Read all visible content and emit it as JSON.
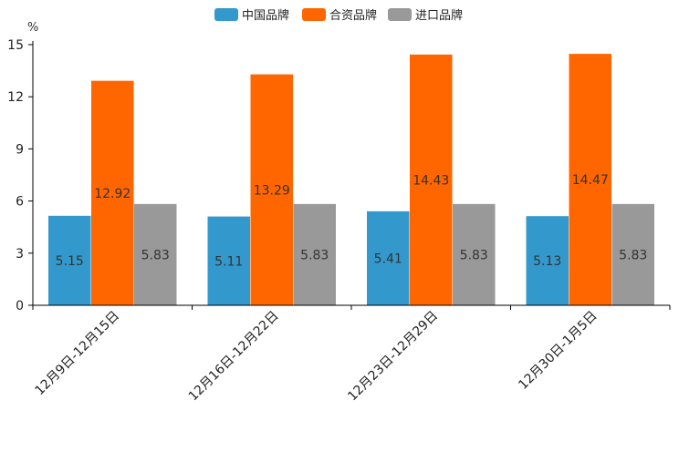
{
  "chart_data": {
    "type": "bar",
    "title": "",
    "xlabel": "",
    "ylabel": "%",
    "ylim": [
      0,
      15
    ],
    "yticks": [
      0,
      3,
      6,
      9,
      12,
      15
    ],
    "grid": false,
    "legend_position": "top-center",
    "categories": [
      "12月9日-12月15日",
      "12月16日-12月22日",
      "12月23日-12月29日",
      "12月30日-1月5日"
    ],
    "series": [
      {
        "name": "中国品牌",
        "color": "#3399cc",
        "values": [
          5.15,
          5.11,
          5.41,
          5.13
        ],
        "labels": [
          "5.15",
          "5.11",
          "5.41",
          "5.13"
        ]
      },
      {
        "name": "合资品牌",
        "color": "#ff6600",
        "values": [
          12.92,
          13.29,
          14.43,
          14.47
        ],
        "labels": [
          "12.92",
          "13.29",
          "14.43",
          "14.47"
        ]
      },
      {
        "name": "进口品牌",
        "color": "#999999",
        "values": [
          5.83,
          5.83,
          5.83,
          5.83
        ],
        "labels": [
          "5.83",
          "5.83",
          "5.83",
          "5.83"
        ]
      }
    ]
  }
}
